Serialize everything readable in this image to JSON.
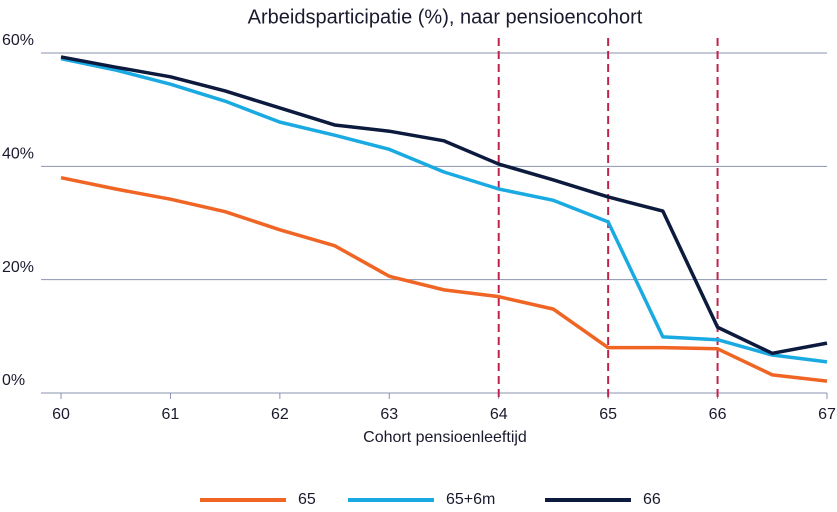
{
  "chart_data": {
    "type": "line",
    "title": "Arbeidsparticipatie (%), naar pensioencohort",
    "x_label": "Cohort pensioenleeftijd",
    "x": [
      60,
      60.5,
      61,
      61.5,
      62,
      62.5,
      63,
      63.5,
      64,
      64.5,
      65,
      65.5,
      66,
      66.5,
      67
    ],
    "series": [
      {
        "name": "65",
        "color": "#f06424",
        "values": [
          38,
          36,
          34.2,
          32,
          28.8,
          26,
          20.6,
          18.2,
          17,
          14.8,
          8,
          8,
          7.8,
          3.2,
          2.1
        ]
      },
      {
        "name": "65+6m",
        "color": "#1aaae2",
        "values": [
          59,
          57,
          54.5,
          51.5,
          47.8,
          45.5,
          43,
          39,
          36,
          34,
          30.2,
          9.9,
          9.4,
          6.7,
          5.5
        ]
      },
      {
        "name": "66",
        "color": "#0c1a3e",
        "values": [
          59.3,
          57.5,
          55.8,
          53.3,
          50.3,
          47.3,
          46.2,
          44.5,
          40.4,
          37.6,
          34.6,
          32.1,
          11.6,
          7,
          8.8
        ]
      }
    ],
    "xlim": [
      60,
      67
    ],
    "xticks": [
      60,
      61,
      62,
      63,
      64,
      65,
      66,
      67
    ],
    "ylim": [
      0,
      60
    ],
    "yticks": [
      {
        "value": 0,
        "label": "0%"
      },
      {
        "value": 20,
        "label": "20%"
      },
      {
        "value": 40,
        "label": "40%"
      },
      {
        "value": 60,
        "label": "60%"
      }
    ],
    "vlines": [
      64,
      65,
      66
    ],
    "vline_color": "#c0234a",
    "grid": true,
    "legend": "bottom"
  }
}
